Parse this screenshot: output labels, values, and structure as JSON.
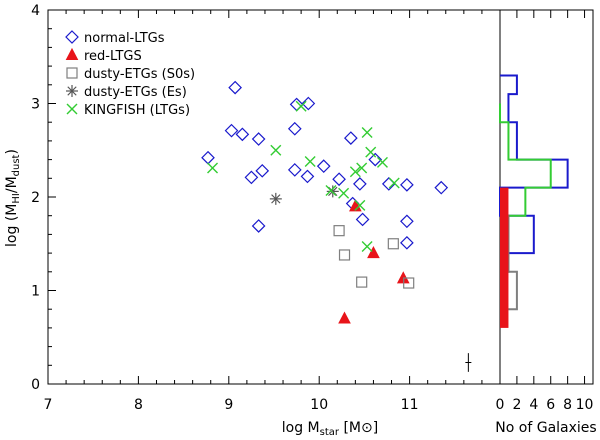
{
  "chart_data": [
    {
      "type": "scatter",
      "xlabel": "log M_star [M_sun]",
      "xlabel_parts": {
        "main": "log M",
        "sub": "star",
        "bracket_open": " [M",
        "sun": "⊙",
        "bracket_close": "]"
      },
      "ylabel": "log (M_HI/M_dust)",
      "ylabel_parts": {
        "main": "log (M",
        "sub1": "HI",
        "slash": "/M",
        "sub2": "dust",
        "close": ")"
      },
      "xlim": [
        7,
        12
      ],
      "ylim": [
        0,
        4
      ],
      "xticks": [
        7,
        8,
        9,
        10,
        11
      ],
      "yticks": [
        0,
        1,
        2,
        3,
        4
      ],
      "xtick_labels": [
        "7",
        "8",
        "9",
        "10",
        "11"
      ],
      "ytick_labels": [
        "0",
        "1",
        "2",
        "3",
        "4"
      ],
      "legend_position": "top-left",
      "series": [
        {
          "name": "normal-LTGs",
          "marker": "diamond",
          "color": "#1a1acc",
          "points": [
            [
              8.77,
              2.42
            ],
            [
              9.07,
              3.17
            ],
            [
              9.03,
              2.71
            ],
            [
              9.15,
              2.67
            ],
            [
              9.25,
              2.21
            ],
            [
              9.37,
              2.28
            ],
            [
              9.33,
              2.62
            ],
            [
              9.33,
              1.69
            ],
            [
              9.73,
              2.73
            ],
            [
              9.75,
              2.99
            ],
            [
              9.73,
              2.29
            ],
            [
              9.88,
              3.0
            ],
            [
              9.87,
              2.22
            ],
            [
              10.05,
              2.33
            ],
            [
              10.22,
              2.19
            ],
            [
              10.35,
              2.63
            ],
            [
              10.45,
              2.14
            ],
            [
              10.37,
              1.93
            ],
            [
              10.48,
              1.76
            ],
            [
              10.62,
              2.4
            ],
            [
              10.77,
              2.14
            ],
            [
              10.97,
              2.13
            ],
            [
              10.97,
              1.74
            ],
            [
              10.97,
              1.51
            ],
            [
              11.35,
              2.1
            ]
          ]
        },
        {
          "name": "red-LTGS",
          "marker": "triangle",
          "color": "#e8141a",
          "points": [
            [
              10.4,
              1.9
            ],
            [
              10.6,
              1.4
            ],
            [
              10.28,
              0.7
            ],
            [
              10.93,
              1.13
            ]
          ]
        },
        {
          "name": "dusty-ETGs (S0s)",
          "marker": "square",
          "color": "#7f7f7f",
          "points": [
            [
              10.22,
              1.64
            ],
            [
              10.28,
              1.38
            ],
            [
              10.47,
              1.09
            ],
            [
              10.82,
              1.5
            ],
            [
              10.99,
              1.08
            ]
          ]
        },
        {
          "name": "dusty-ETGs (Es)",
          "marker": "asterisk",
          "color": "#555555",
          "points": [
            [
              9.52,
              1.98
            ],
            [
              10.15,
              2.06
            ]
          ]
        },
        {
          "name": "KINGFISH (LTGs)",
          "marker": "x",
          "color": "#33cc33",
          "points": [
            [
              8.82,
              2.31
            ],
            [
              9.52,
              2.5
            ],
            [
              9.9,
              2.38
            ],
            [
              9.8,
              2.97
            ],
            [
              10.13,
              2.07
            ],
            [
              10.27,
              2.04
            ],
            [
              10.4,
              2.27
            ],
            [
              10.45,
              1.91
            ],
            [
              10.47,
              2.31
            ],
            [
              10.53,
              2.69
            ],
            [
              10.57,
              2.48
            ],
            [
              10.53,
              1.47
            ],
            [
              10.7,
              2.37
            ],
            [
              10.83,
              2.15
            ]
          ]
        }
      ],
      "error_bar": {
        "x": 11.65,
        "y": 0.23,
        "yerr": 0.1
      }
    },
    {
      "type": "histogram",
      "orientation": "horizontal",
      "xlabel": "No of Galaxies",
      "xticks": [
        0,
        2,
        4,
        6,
        8,
        10
      ],
      "xtick_labels": [
        "0",
        "2",
        "4",
        "6",
        "8",
        "10"
      ],
      "xlim": [
        0,
        11
      ],
      "ylim": [
        0,
        4
      ],
      "series": [
        {
          "name": "normal-LTGs",
          "color": "#1a1acc",
          "fill": "none",
          "bins": [
            [
              1.4,
              1.8,
              4
            ],
            [
              1.8,
              2.1,
              0
            ],
            [
              2.1,
              2.4,
              8
            ],
            [
              2.4,
              2.8,
              2
            ],
            [
              2.8,
              3.1,
              1
            ],
            [
              3.1,
              3.3,
              2
            ]
          ]
        },
        {
          "name": "KINGFISH (LTGs)",
          "color": "#33cc33",
          "fill": "none",
          "bins": [
            [
              1.2,
              1.8,
              1
            ],
            [
              1.8,
              2.1,
              3
            ],
            [
              2.1,
              2.4,
              6
            ],
            [
              2.4,
              2.8,
              1
            ],
            [
              2.8,
              3.0,
              0
            ]
          ]
        },
        {
          "name": "dusty-ETGs (S0s)",
          "color": "#7f7f7f",
          "fill": "none",
          "bins": [
            [
              0.8,
              1.2,
              2
            ],
            [
              1.2,
              1.8,
              1
            ]
          ]
        },
        {
          "name": "red-LTGS",
          "color": "#e8141a",
          "fill": "solid",
          "bins": [
            [
              0.6,
              2.1,
              1
            ]
          ]
        }
      ]
    }
  ]
}
